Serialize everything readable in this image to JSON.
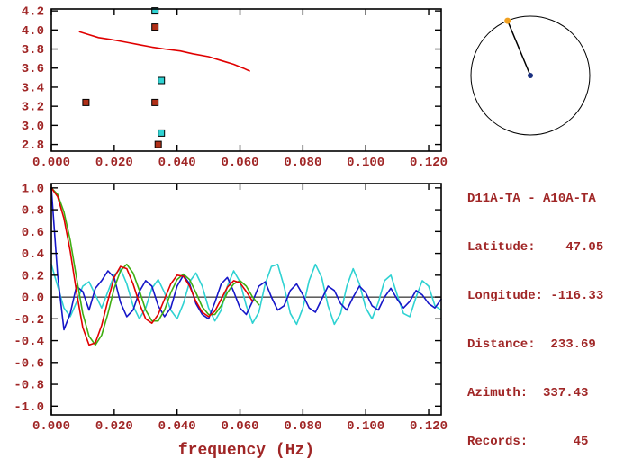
{
  "colors": {
    "background": "#ffffff",
    "axis_frame": "#000000",
    "label_text": "#a02626",
    "red_curve": "#e00000",
    "green_curve": "#3fae12",
    "blue_curve": "#1616c8",
    "cyan_curve": "#2fd2d2",
    "red_marker": "#b03018",
    "cyan_marker": "#2fd2d2",
    "edge_dot": "#f0a020",
    "center_dot": "#1a3080"
  },
  "info": {
    "title": "D11A-TA - A10A-TA",
    "lines": [
      "Latitude:    47.05",
      "Longitude: -116.33",
      "Distance:  233.69",
      "Azimuth:  337.43",
      "Records:      45"
    ]
  },
  "compass": {
    "azimuth_deg": 337.43
  },
  "chart_data": [
    {
      "id": "dispersion",
      "type": "scatter",
      "title": "",
      "xlabel": "",
      "ylabel": "",
      "xlim": [
        0,
        0.124
      ],
      "ylim": [
        2.73,
        4.22
      ],
      "xticks": [
        0,
        0.02,
        0.04,
        0.06,
        0.08,
        0.1,
        0.12
      ],
      "xtick_labels": [
        "0.000",
        "0.020",
        "0.040",
        "0.060",
        "0.080",
        "0.100",
        "0.120"
      ],
      "yticks": [
        2.8,
        3.0,
        3.2,
        3.4,
        3.6,
        3.8,
        4.0,
        4.2
      ],
      "ytick_labels": [
        "2.8",
        "3.0",
        "3.2",
        "3.4",
        "3.6",
        "3.8",
        "4.0",
        "4.2"
      ],
      "grid": false,
      "legend": false,
      "series": [
        {
          "name": "dispersion-curve",
          "type": "line",
          "color": "#e00000",
          "x": [
            0.009,
            0.012,
            0.015,
            0.019,
            0.024,
            0.028,
            0.032,
            0.036,
            0.041,
            0.045,
            0.05,
            0.054,
            0.058,
            0.061,
            0.063
          ],
          "y": [
            3.98,
            3.95,
            3.92,
            3.9,
            3.87,
            3.845,
            3.82,
            3.8,
            3.78,
            3.75,
            3.72,
            3.68,
            3.64,
            3.6,
            3.57
          ]
        },
        {
          "name": "cyan-pick-marker",
          "type": "squares",
          "color": "#2fd2d2",
          "points": [
            [
              0.033,
              4.2
            ],
            [
              0.035,
              3.47
            ],
            [
              0.035,
              2.92
            ]
          ]
        },
        {
          "name": "red-pick-marker",
          "type": "squares",
          "color": "#b03018",
          "points": [
            [
              0.033,
              4.03
            ],
            [
              0.011,
              3.24
            ],
            [
              0.033,
              3.24
            ],
            [
              0.034,
              2.8
            ]
          ]
        }
      ]
    },
    {
      "id": "cross-spectrum",
      "type": "line",
      "title": "",
      "xlabel": "frequency (Hz)",
      "ylabel": "",
      "xlim": [
        0,
        0.124
      ],
      "ylim": [
        -1.08,
        1.04
      ],
      "xticks": [
        0,
        0.02,
        0.04,
        0.06,
        0.08,
        0.1,
        0.12
      ],
      "xtick_labels": [
        "0.000",
        "0.020",
        "0.040",
        "0.060",
        "0.080",
        "0.100",
        "0.120"
      ],
      "yticks": [
        -1.0,
        -0.8,
        -0.6,
        -0.4,
        -0.2,
        0.0,
        0.2,
        0.4,
        0.6,
        0.8,
        1.0
      ],
      "ytick_labels": [
        "-1.0",
        "-0.8",
        "-0.6",
        "-0.4",
        "-0.2",
        "0.0",
        "0.2",
        "0.4",
        "0.6",
        "0.8",
        "1.0"
      ],
      "zero_line": true,
      "grid": false,
      "legend": false,
      "series": [
        {
          "name": "cyan-spectrum-trace",
          "type": "line",
          "color": "#2fd2d2",
          "x_start": 0,
          "x_step": 0.002,
          "y": [
            0.3,
            0.1,
            -0.1,
            -0.18,
            -0.05,
            0.1,
            0.14,
            0.02,
            -0.1,
            0.05,
            0.2,
            0.26,
            0.12,
            -0.08,
            -0.2,
            -0.1,
            0.08,
            0.16,
            0.04,
            -0.12,
            -0.2,
            -0.06,
            0.14,
            0.22,
            0.1,
            -0.1,
            -0.22,
            -0.12,
            0.1,
            0.24,
            0.14,
            -0.08,
            -0.24,
            -0.14,
            0.12,
            0.28,
            0.3,
            0.1,
            -0.15,
            -0.25,
            -0.1,
            0.15,
            0.3,
            0.18,
            -0.08,
            -0.25,
            -0.15,
            0.1,
            0.26,
            0.12,
            -0.1,
            -0.2,
            -0.05,
            0.15,
            0.2,
            0.02,
            -0.15,
            -0.18,
            0.0,
            0.15,
            0.1,
            -0.08,
            -0.12
          ]
        },
        {
          "name": "blue-spectrum-trace",
          "type": "line",
          "color": "#1616c8",
          "x_start": 0,
          "x_step": 0.002,
          "y": [
            1.0,
            0.2,
            -0.3,
            -0.15,
            0.1,
            0.05,
            -0.12,
            0.08,
            0.15,
            0.24,
            0.18,
            -0.05,
            -0.18,
            -0.12,
            0.05,
            0.15,
            0.1,
            -0.08,
            -0.18,
            -0.1,
            0.1,
            0.2,
            0.12,
            -0.06,
            -0.16,
            -0.2,
            -0.05,
            0.12,
            0.18,
            0.05,
            -0.1,
            -0.16,
            -0.04,
            0.1,
            0.14,
            0.0,
            -0.12,
            -0.08,
            0.06,
            0.12,
            0.02,
            -0.1,
            -0.14,
            -0.02,
            0.1,
            0.06,
            -0.06,
            -0.12,
            0.0,
            0.1,
            0.04,
            -0.08,
            -0.12,
            0.0,
            0.08,
            -0.02,
            -0.1,
            -0.04,
            0.06,
            0.02,
            -0.06,
            -0.1,
            -0.02
          ]
        },
        {
          "name": "green-bessel-fit",
          "type": "line",
          "color": "#3fae12",
          "x_start": 0,
          "x_step": 0.002,
          "y": [
            1.0,
            0.94,
            0.78,
            0.52,
            0.18,
            -0.15,
            -0.36,
            -0.44,
            -0.35,
            -0.15,
            0.08,
            0.24,
            0.3,
            0.22,
            0.06,
            -0.12,
            -0.22,
            -0.22,
            -0.12,
            0.04,
            0.16,
            0.21,
            0.16,
            0.04,
            -0.09,
            -0.16,
            -0.16,
            -0.08,
            0.04,
            0.12,
            0.15,
            0.1,
            0.0,
            -0.07
          ]
        },
        {
          "name": "red-bessel-fit",
          "type": "line",
          "color": "#e00000",
          "x_start": 0,
          "x_step": 0.002,
          "y": [
            1.0,
            0.92,
            0.72,
            0.42,
            0.05,
            -0.28,
            -0.44,
            -0.42,
            -0.26,
            -0.03,
            0.18,
            0.28,
            0.26,
            0.12,
            -0.06,
            -0.2,
            -0.24,
            -0.16,
            -0.02,
            0.12,
            0.2,
            0.19,
            0.1,
            -0.04,
            -0.14,
            -0.18,
            -0.13,
            -0.02,
            0.09,
            0.15,
            0.13,
            0.05,
            -0.04
          ]
        }
      ]
    }
  ]
}
